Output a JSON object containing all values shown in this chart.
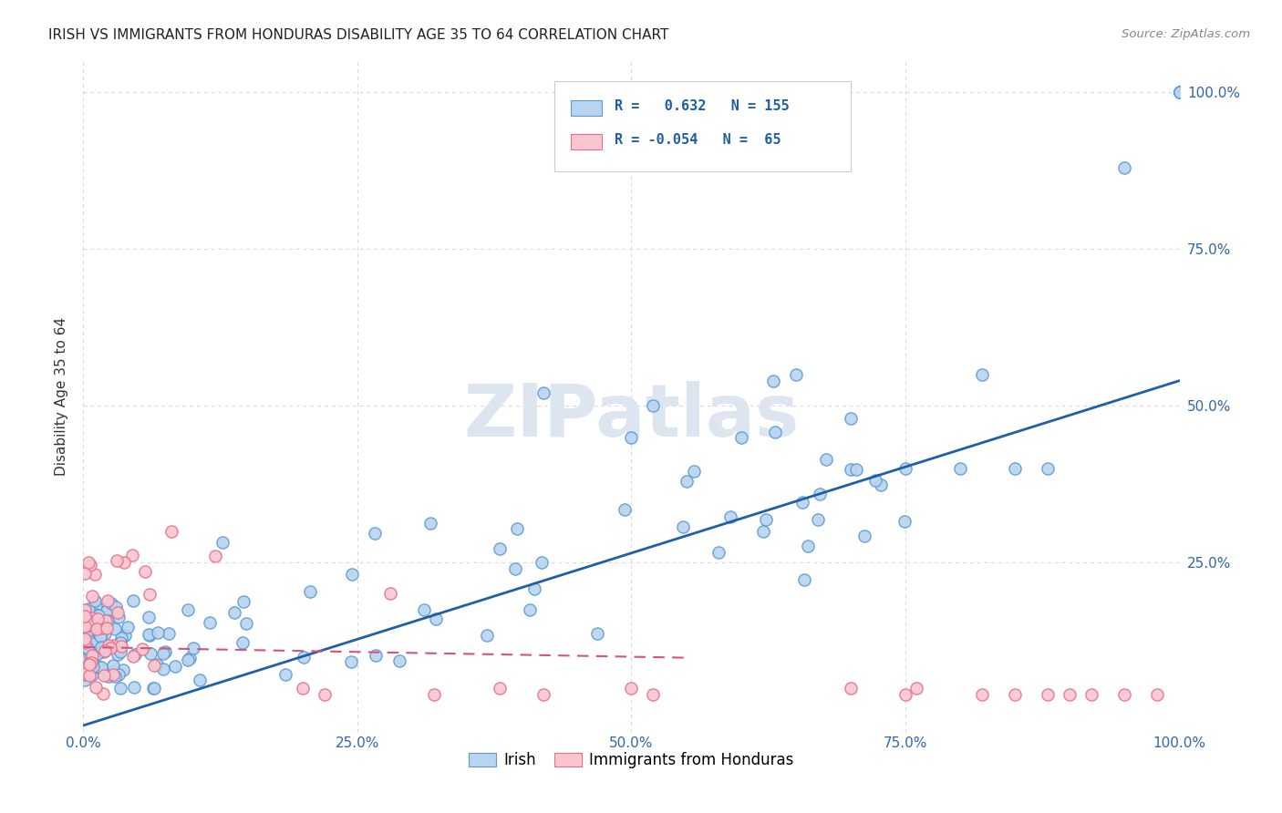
{
  "title": "IRISH VS IMMIGRANTS FROM HONDURAS DISABILITY AGE 35 TO 64 CORRELATION CHART",
  "source": "Source: ZipAtlas.com",
  "ylabel": "Disability Age 35 to 64",
  "xlim": [
    0.0,
    1.0
  ],
  "ylim": [
    -0.02,
    1.05
  ],
  "xtick_positions": [
    0.0,
    0.25,
    0.5,
    0.75,
    1.0
  ],
  "xtick_labels": [
    "0.0%",
    "25.0%",
    "50.0%",
    "75.0%",
    "100.0%"
  ],
  "ytick_positions": [
    0.25,
    0.5,
    0.75,
    1.0
  ],
  "ytick_labels": [
    "25.0%",
    "50.0%",
    "75.0%",
    "100.0%"
  ],
  "irish_fill": "#b8d4ee",
  "irish_edge": "#5b9bd5",
  "honduras_fill": "#f9c6d0",
  "honduras_edge": "#e8708a",
  "irish_line_color": "#1f5fa6",
  "honduras_line_color": "#d4547a",
  "watermark_color": "#dde6f0",
  "irish_R": 0.632,
  "irish_N": 155,
  "honduras_R": -0.054,
  "honduras_N": 65,
  "legend_irish": "Irish",
  "legend_honduras": "Immigrants from Honduras",
  "irish_line_x0": 0.0,
  "irish_line_y0": -0.01,
  "irish_line_x1": 1.0,
  "irish_line_y1": 0.54,
  "honduras_line_x0": 0.0,
  "honduras_line_y0": 0.115,
  "honduras_line_x1": 0.55,
  "honduras_line_y1": 0.098
}
